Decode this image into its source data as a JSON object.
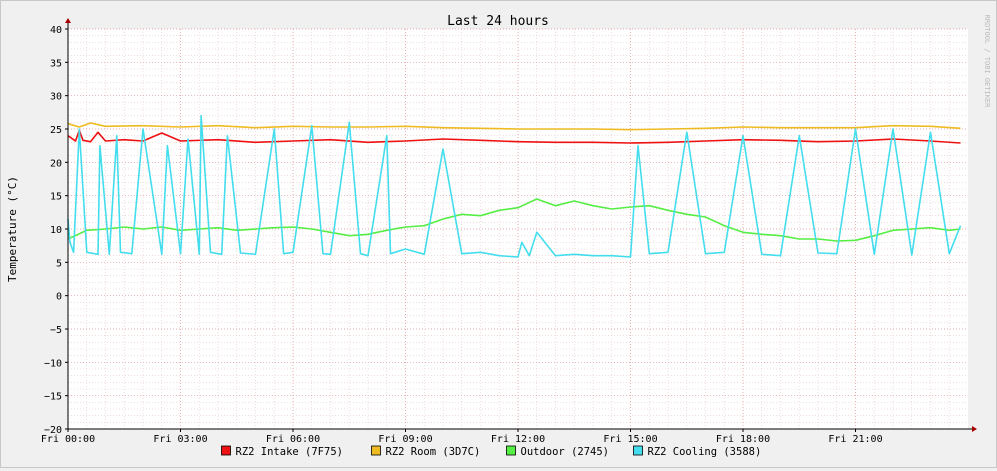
{
  "chart_data": {
    "type": "line",
    "title": "Last 24 hours",
    "ylabel": "Temperature (°C)",
    "xlabel": "",
    "watermark": "RRDTOOL / TOBI OETIKER",
    "ylim": [
      -20,
      40
    ],
    "yticks": [
      "40",
      "35",
      "30",
      "25",
      "20",
      "15",
      "10",
      "5",
      "0",
      "−5",
      "−10",
      "−15",
      "−20"
    ],
    "xlim": [
      0,
      24
    ],
    "xticks": [
      {
        "x": 0,
        "label": "Fri 00:00"
      },
      {
        "x": 3,
        "label": "Fri 03:00"
      },
      {
        "x": 6,
        "label": "Fri 06:00"
      },
      {
        "x": 9,
        "label": "Fri 09:00"
      },
      {
        "x": 12,
        "label": "Fri 12:00"
      },
      {
        "x": 15,
        "label": "Fri 15:00"
      },
      {
        "x": 18,
        "label": "Fri 18:00"
      },
      {
        "x": 21,
        "label": "Fri 21:00"
      }
    ],
    "grid": true,
    "legend_position": "bottom",
    "series": [
      {
        "name": "RZ2 Intake (7F75)",
        "color": "#ee1111",
        "x": [
          0,
          0.2,
          0.3,
          0.4,
          0.6,
          0.8,
          1.0,
          1.5,
          2.0,
          2.5,
          3.0,
          4.0,
          5.0,
          6.0,
          7.0,
          8.0,
          9.0,
          10.0,
          11.0,
          12.0,
          13.0,
          14.0,
          15.0,
          16.0,
          17.0,
          18.0,
          19.0,
          20.0,
          21.0,
          22.0,
          23.0,
          23.8
        ],
        "y": [
          24.0,
          23.2,
          24.8,
          23.3,
          23.1,
          24.5,
          23.2,
          23.4,
          23.2,
          24.4,
          23.2,
          23.4,
          23.0,
          23.2,
          23.4,
          23.0,
          23.2,
          23.5,
          23.3,
          23.1,
          23.0,
          23.0,
          22.9,
          23.0,
          23.2,
          23.4,
          23.3,
          23.1,
          23.2,
          23.5,
          23.2,
          22.9
        ]
      },
      {
        "name": "RZ2 Room (3D7C)",
        "color": "#eebb22",
        "x": [
          0,
          0.3,
          0.6,
          1.0,
          2.0,
          3.0,
          4.0,
          5.0,
          6.0,
          7.0,
          8.0,
          9.0,
          10.0,
          11.0,
          12.0,
          13.0,
          14.0,
          15.0,
          16.0,
          17.0,
          18.0,
          19.0,
          20.0,
          21.0,
          22.0,
          23.0,
          23.8
        ],
        "y": [
          25.8,
          25.3,
          25.9,
          25.4,
          25.5,
          25.3,
          25.5,
          25.2,
          25.4,
          25.3,
          25.3,
          25.4,
          25.2,
          25.1,
          25.0,
          25.0,
          25.0,
          24.9,
          25.0,
          25.1,
          25.3,
          25.2,
          25.2,
          25.2,
          25.5,
          25.4,
          25.1
        ]
      },
      {
        "name": "Outdoor (2745)",
        "color": "#55ee44",
        "x": [
          0,
          0.5,
          1.0,
          1.5,
          2.0,
          2.5,
          3.0,
          3.5,
          4.0,
          4.5,
          5.0,
          5.5,
          6.0,
          6.5,
          7.0,
          7.5,
          8.0,
          8.5,
          9.0,
          9.5,
          10.0,
          10.5,
          11.0,
          11.5,
          12.0,
          12.5,
          13.0,
          13.5,
          14.0,
          14.5,
          15.0,
          15.5,
          16.0,
          16.5,
          17.0,
          17.5,
          18.0,
          18.5,
          19.0,
          19.5,
          20.0,
          20.5,
          21.0,
          21.5,
          22.0,
          22.5,
          23.0,
          23.5,
          23.8
        ],
        "y": [
          8.5,
          9.8,
          10.0,
          10.3,
          10.0,
          10.3,
          9.8,
          10.0,
          10.2,
          9.8,
          10.0,
          10.2,
          10.3,
          10.0,
          9.5,
          9.0,
          9.2,
          9.8,
          10.3,
          10.5,
          11.5,
          12.2,
          12.0,
          12.8,
          13.2,
          14.5,
          13.5,
          14.2,
          13.5,
          13.0,
          13.3,
          13.5,
          12.8,
          12.2,
          11.8,
          10.5,
          9.5,
          9.2,
          9.0,
          8.5,
          8.5,
          8.2,
          8.3,
          9.0,
          9.8,
          10.0,
          10.2,
          9.8,
          10.0
        ]
      },
      {
        "name": "RZ2 Cooling (3588)",
        "color": "#44ddee",
        "x": [
          0,
          0.05,
          0.15,
          0.3,
          0.5,
          0.8,
          0.85,
          1.1,
          1.3,
          1.4,
          1.7,
          2.0,
          2.5,
          2.65,
          3.0,
          3.2,
          3.5,
          3.55,
          3.8,
          4.1,
          4.25,
          4.6,
          5.0,
          5.5,
          5.75,
          6.0,
          6.5,
          6.8,
          7.0,
          7.5,
          7.8,
          8.0,
          8.5,
          8.6,
          9.0,
          9.5,
          10.0,
          10.5,
          11.0,
          11.5,
          12.0,
          12.1,
          12.3,
          12.5,
          13.0,
          13.5,
          14.0,
          14.5,
          15.0,
          15.2,
          15.5,
          16.0,
          16.5,
          17.0,
          17.5,
          18.0,
          18.5,
          19.0,
          19.5,
          20.0,
          20.5,
          21.0,
          21.5,
          22.0,
          22.5,
          23.0,
          23.5,
          23.8
        ],
        "y": [
          11.5,
          8.0,
          6.5,
          25.0,
          6.5,
          6.2,
          22.5,
          6.2,
          24.0,
          6.5,
          6.3,
          25.0,
          6.2,
          22.5,
          6.3,
          23.5,
          6.2,
          27.0,
          6.5,
          6.2,
          24.0,
          6.4,
          6.2,
          25.0,
          6.3,
          6.5,
          25.5,
          6.3,
          6.2,
          26.0,
          6.3,
          6.0,
          24.0,
          6.3,
          7.0,
          6.2,
          22.0,
          6.3,
          6.5,
          6.0,
          5.8,
          8.0,
          6.0,
          9.5,
          6.0,
          6.2,
          6.0,
          6.0,
          5.8,
          22.5,
          6.3,
          6.5,
          24.5,
          6.3,
          6.5,
          24.0,
          6.2,
          6.0,
          24.0,
          6.4,
          6.3,
          25.0,
          6.2,
          25.0,
          6.1,
          24.5,
          6.3,
          10.5
        ]
      }
    ]
  }
}
